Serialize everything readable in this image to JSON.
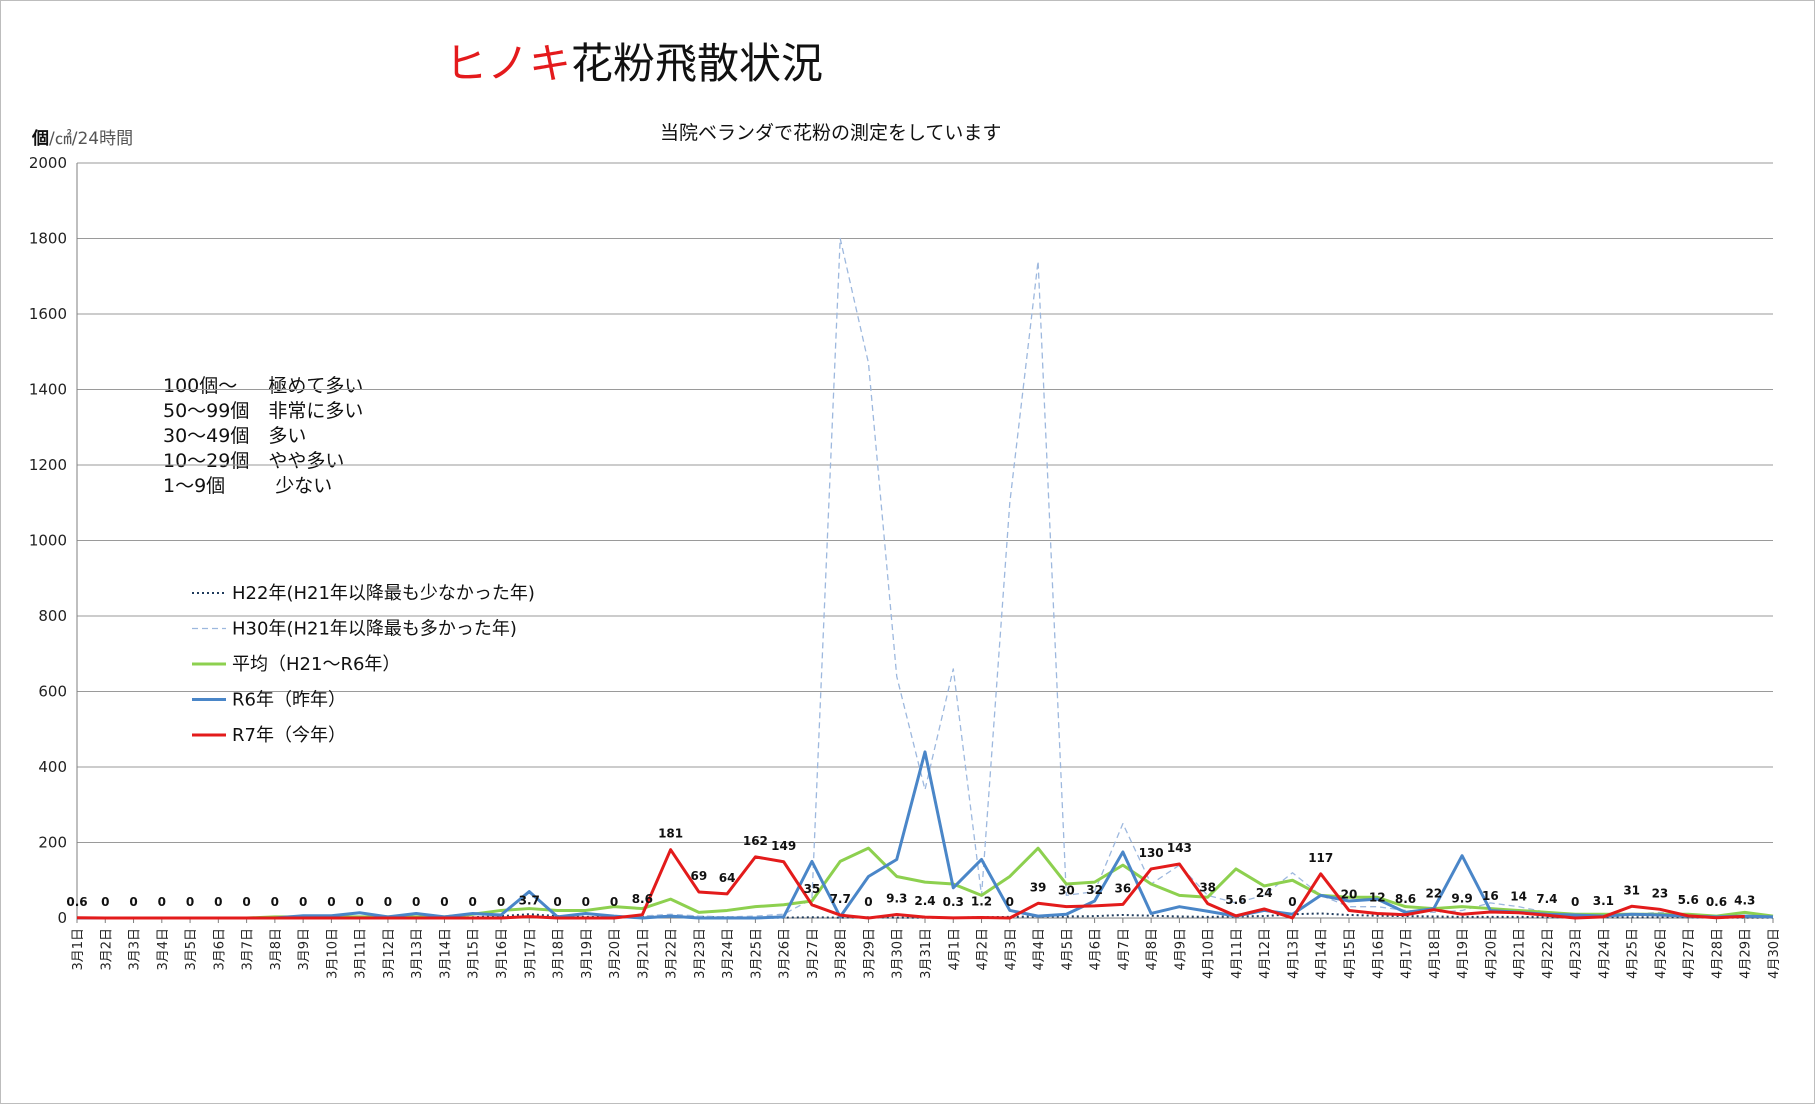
{
  "title": {
    "part1": "ヒノキ",
    "part2": "花粉飛散状況"
  },
  "unit": {
    "bold": "個",
    "rest": "/㎠/24時間"
  },
  "subtitle": "当院ベランダで花粉の測定をしています",
  "levels": [
    "100個～　  極めて多い",
    "50～99個　非常に多い",
    "30～49個　多い",
    "10～29個　やや多い",
    "1～9個　　  少ない"
  ],
  "colors": {
    "h22": "#1f3b5c",
    "h30": "#9db8de",
    "avg": "#8dd04f",
    "r6": "#4a86c8",
    "r7": "#e31b1b"
  },
  "chart_data": {
    "type": "line",
    "categories": [
      "3月1日",
      "3月2日",
      "3月3日",
      "3月4日",
      "3月5日",
      "3月6日",
      "3月7日",
      "3月8日",
      "3月9日",
      "3月10日",
      "3月11日",
      "3月12日",
      "3月13日",
      "3月14日",
      "3月15日",
      "3月16日",
      "3月17日",
      "3月18日",
      "3月19日",
      "3月20日",
      "3月21日",
      "3月22日",
      "3月23日",
      "3月24日",
      "3月25日",
      "3月26日",
      "3月27日",
      "3月28日",
      "3月29日",
      "3月30日",
      "3月31日",
      "4月1日",
      "4月2日",
      "4月3日",
      "4月4日",
      "4月5日",
      "4月6日",
      "4月7日",
      "4月8日",
      "4月9日",
      "4月10日",
      "4月11日",
      "4月12日",
      "4月13日",
      "4月14日",
      "4月15日",
      "4月16日",
      "4月17日",
      "4月18日",
      "4月19日",
      "4月20日",
      "4月21日",
      "4月22日",
      "4月23日",
      "4月24日",
      "4月25日",
      "4月26日",
      "4月27日",
      "4月28日",
      "4月29日",
      "4月30日"
    ],
    "ylim": [
      0,
      2000
    ],
    "yticks": [
      0,
      200,
      400,
      600,
      800,
      1000,
      1200,
      1400,
      1600,
      1800,
      2000
    ],
    "series": [
      {
        "name": "H22年(H21年以降最も少なかった年)",
        "style": "dotted",
        "values": [
          0,
          0,
          0,
          0,
          0,
          0,
          0,
          0,
          0,
          0,
          0,
          0,
          0,
          0,
          2,
          5,
          10,
          5,
          3,
          2,
          3,
          5,
          3,
          2,
          1,
          1,
          2,
          1,
          2,
          1,
          1,
          1,
          2,
          3,
          4,
          4,
          5,
          8,
          6,
          4,
          3,
          4,
          5,
          10,
          12,
          8,
          6,
          5,
          4,
          3,
          3,
          3,
          2,
          2,
          2,
          2,
          2,
          2,
          1,
          1,
          1
        ]
      },
      {
        "name": "H30年(H21年以降最も多かった年)",
        "style": "dashed",
        "values": [
          0,
          0,
          0,
          0,
          0,
          0,
          0,
          0,
          0,
          0,
          0,
          0,
          0,
          0,
          0,
          2,
          5,
          3,
          2,
          1,
          5,
          10,
          5,
          3,
          5,
          10,
          50,
          1800,
          1470,
          640,
          340,
          660,
          60,
          1100,
          1740,
          60,
          70,
          250,
          90,
          140,
          60,
          40,
          60,
          120,
          60,
          30,
          30,
          20,
          15,
          20,
          40,
          30,
          15,
          10,
          10,
          10,
          15,
          10,
          5,
          5,
          3
        ]
      },
      {
        "name": "平均（H21～R6年）",
        "style": "solid",
        "values": [
          0,
          0,
          0,
          0,
          0,
          0,
          0,
          3,
          3,
          3,
          3,
          3,
          3,
          3,
          10,
          20,
          25,
          20,
          20,
          30,
          25,
          50,
          15,
          20,
          30,
          35,
          45,
          150,
          185,
          110,
          95,
          90,
          60,
          110,
          185,
          90,
          95,
          140,
          90,
          60,
          55,
          130,
          85,
          100,
          60,
          55,
          55,
          30,
          25,
          30,
          25,
          20,
          15,
          10,
          10,
          10,
          10,
          10,
          5,
          15,
          5
        ]
      },
      {
        "name": "R6年（昨年）",
        "style": "solid",
        "values": [
          0,
          0,
          0,
          0,
          0,
          0,
          0,
          0,
          6,
          6,
          14,
          3,
          12,
          3,
          12,
          8,
          70,
          3,
          12,
          5,
          0,
          5,
          0,
          0,
          0,
          3,
          150,
          3,
          110,
          155,
          440,
          80,
          155,
          20,
          5,
          10,
          45,
          175,
          12,
          30,
          18,
          5,
          20,
          10,
          60,
          45,
          50,
          15,
          25,
          165,
          20,
          15,
          10,
          8,
          5,
          10,
          8,
          5,
          3,
          5,
          3
        ]
      },
      {
        "name": "R7年（今年）",
        "style": "solid",
        "values": [
          0.6,
          0,
          0,
          0,
          0,
          0,
          0,
          0,
          0,
          0,
          0,
          0,
          0,
          0,
          0,
          0,
          3.7,
          0,
          0,
          0,
          8.6,
          181,
          69,
          64,
          162,
          149,
          35,
          7.7,
          0,
          9.3,
          2.4,
          0.3,
          1.2,
          0,
          39,
          30,
          32,
          36,
          130,
          143,
          38,
          5.6,
          24,
          0,
          117,
          20,
          12,
          8.6,
          22,
          9.9,
          16,
          14,
          7.4,
          0,
          3.1,
          31,
          23,
          5.6,
          0.6,
          4.3,
          null
        ]
      }
    ],
    "data_labels": [
      "0.6",
      "0",
      "0",
      "0",
      "0",
      "0",
      "0",
      "0",
      "0",
      "0",
      "0",
      "0",
      "0",
      "0",
      "0",
      "0",
      "3.7",
      "0",
      "0",
      "0",
      "8.6",
      "181",
      "69",
      "64",
      "162",
      "149",
      "35",
      "7.7",
      "0",
      "9.3",
      "2.4",
      "0.3",
      "1.2",
      "0",
      "39",
      "30",
      "32",
      "36",
      "130",
      "143",
      "38",
      "5.6",
      "24",
      "0",
      "117",
      "20",
      "12",
      "8.6",
      "22",
      "9.9",
      "16",
      "14",
      "7.4",
      "0",
      "3.1",
      "31",
      "23",
      "5.6",
      "0.6",
      "4.3",
      ""
    ]
  }
}
